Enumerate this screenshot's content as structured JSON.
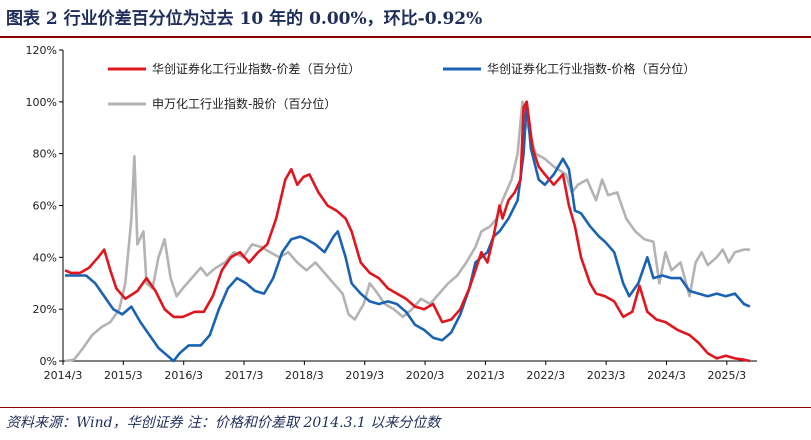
{
  "figure": {
    "title": "图表 2   行业价差百分位为过去 10 年的 0.00%，环比-0.92%",
    "source": "资料来源：Wind，华创证券    注：价格和价差取 2014.3.1 以来分位数"
  },
  "colors": {
    "spread": "#e0161e",
    "price": "#1a63b3",
    "stock": "#b3b3b3",
    "rule": "#8b0000",
    "title": "#1f2d5a"
  },
  "chart_data": {
    "type": "line",
    "xlabel": "",
    "ylabel": "",
    "ylim": [
      0,
      120
    ],
    "xlim": [
      2014.167,
      2025.667
    ],
    "y_ticks": [
      "0%",
      "20%",
      "40%",
      "60%",
      "80%",
      "100%",
      "120%"
    ],
    "y_tick_values": [
      0,
      20,
      40,
      60,
      80,
      100,
      120
    ],
    "x_ticks": [
      "2014/3",
      "2015/3",
      "2016/3",
      "2017/3",
      "2018/3",
      "2019/3",
      "2020/3",
      "2021/3",
      "2022/3",
      "2023/3",
      "2024/3",
      "2025/3"
    ],
    "x_tick_values": [
      2014.167,
      2015.167,
      2016.167,
      2017.167,
      2018.167,
      2019.167,
      2020.167,
      2021.167,
      2022.167,
      2023.167,
      2024.167,
      2025.167
    ],
    "grid": false,
    "legend": "top",
    "series": [
      {
        "name": "华创证券化工行业指数-价差（百分位）",
        "color": "#e0161e",
        "points": [
          [
            2014.2,
            35
          ],
          [
            2014.3,
            34
          ],
          [
            2014.45,
            34
          ],
          [
            2014.6,
            36
          ],
          [
            2014.75,
            40
          ],
          [
            2014.85,
            43
          ],
          [
            2014.95,
            35
          ],
          [
            2015.05,
            28
          ],
          [
            2015.2,
            24
          ],
          [
            2015.4,
            27
          ],
          [
            2015.55,
            32
          ],
          [
            2015.7,
            27
          ],
          [
            2015.85,
            20
          ],
          [
            2016.0,
            17
          ],
          [
            2016.15,
            17
          ],
          [
            2016.35,
            19
          ],
          [
            2016.5,
            19
          ],
          [
            2016.65,
            25
          ],
          [
            2016.8,
            35
          ],
          [
            2016.95,
            40
          ],
          [
            2017.1,
            42
          ],
          [
            2017.25,
            38
          ],
          [
            2017.4,
            42
          ],
          [
            2017.55,
            45
          ],
          [
            2017.7,
            55
          ],
          [
            2017.85,
            70
          ],
          [
            2017.95,
            74
          ],
          [
            2018.05,
            68
          ],
          [
            2018.15,
            71
          ],
          [
            2018.25,
            72
          ],
          [
            2018.4,
            65
          ],
          [
            2018.55,
            60
          ],
          [
            2018.7,
            58
          ],
          [
            2018.85,
            55
          ],
          [
            2018.95,
            50
          ],
          [
            2019.1,
            38
          ],
          [
            2019.25,
            34
          ],
          [
            2019.4,
            32
          ],
          [
            2019.55,
            28
          ],
          [
            2019.7,
            26
          ],
          [
            2019.85,
            24
          ],
          [
            2020.0,
            21
          ],
          [
            2020.15,
            20
          ],
          [
            2020.3,
            22
          ],
          [
            2020.45,
            15
          ],
          [
            2020.6,
            16
          ],
          [
            2020.75,
            20
          ],
          [
            2020.9,
            28
          ],
          [
            2021.0,
            35
          ],
          [
            2021.1,
            42
          ],
          [
            2021.2,
            38
          ],
          [
            2021.3,
            48
          ],
          [
            2021.4,
            60
          ],
          [
            2021.45,
            55
          ],
          [
            2021.55,
            62
          ],
          [
            2021.65,
            65
          ],
          [
            2021.75,
            70
          ],
          [
            2021.8,
            98
          ],
          [
            2021.85,
            100
          ],
          [
            2021.95,
            82
          ],
          [
            2022.05,
            75
          ],
          [
            2022.15,
            72
          ],
          [
            2022.3,
            68
          ],
          [
            2022.45,
            72
          ],
          [
            2022.55,
            60
          ],
          [
            2022.65,
            52
          ],
          [
            2022.75,
            40
          ],
          [
            2022.9,
            30
          ],
          [
            2023.0,
            26
          ],
          [
            2023.15,
            25
          ],
          [
            2023.3,
            23
          ],
          [
            2023.45,
            17
          ],
          [
            2023.6,
            19
          ],
          [
            2023.72,
            29
          ],
          [
            2023.85,
            19
          ],
          [
            2024.0,
            16
          ],
          [
            2024.15,
            15
          ],
          [
            2024.35,
            12
          ],
          [
            2024.55,
            10
          ],
          [
            2024.7,
            7
          ],
          [
            2024.85,
            3
          ],
          [
            2025.0,
            1
          ],
          [
            2025.15,
            2
          ],
          [
            2025.3,
            1
          ],
          [
            2025.45,
            0.5
          ],
          [
            2025.55,
            0
          ]
        ]
      },
      {
        "name": "华创证券化工行业指数-价格（百分位）",
        "color": "#1a63b3",
        "points": [
          [
            2014.2,
            33
          ],
          [
            2014.4,
            33
          ],
          [
            2014.55,
            33
          ],
          [
            2014.7,
            30
          ],
          [
            2014.85,
            25
          ],
          [
            2015.0,
            20
          ],
          [
            2015.15,
            18
          ],
          [
            2015.3,
            21
          ],
          [
            2015.45,
            15
          ],
          [
            2015.6,
            10
          ],
          [
            2015.75,
            5
          ],
          [
            2015.9,
            2
          ],
          [
            2016.0,
            0
          ],
          [
            2016.1,
            3
          ],
          [
            2016.25,
            6
          ],
          [
            2016.45,
            6
          ],
          [
            2016.6,
            10
          ],
          [
            2016.75,
            20
          ],
          [
            2016.9,
            28
          ],
          [
            2017.05,
            32
          ],
          [
            2017.2,
            30
          ],
          [
            2017.35,
            27
          ],
          [
            2017.5,
            26
          ],
          [
            2017.65,
            32
          ],
          [
            2017.8,
            42
          ],
          [
            2017.95,
            47
          ],
          [
            2018.1,
            48
          ],
          [
            2018.2,
            47
          ],
          [
            2018.35,
            45
          ],
          [
            2018.5,
            42
          ],
          [
            2018.65,
            48
          ],
          [
            2018.72,
            50
          ],
          [
            2018.85,
            40
          ],
          [
            2018.95,
            30
          ],
          [
            2019.1,
            26
          ],
          [
            2019.25,
            23
          ],
          [
            2019.4,
            22
          ],
          [
            2019.55,
            23
          ],
          [
            2019.7,
            22
          ],
          [
            2019.85,
            19
          ],
          [
            2020.0,
            14
          ],
          [
            2020.15,
            12
          ],
          [
            2020.3,
            9
          ],
          [
            2020.45,
            8
          ],
          [
            2020.6,
            11
          ],
          [
            2020.75,
            18
          ],
          [
            2020.9,
            28
          ],
          [
            2021.0,
            38
          ],
          [
            2021.1,
            40
          ],
          [
            2021.2,
            42
          ],
          [
            2021.3,
            48
          ],
          [
            2021.4,
            50
          ],
          [
            2021.55,
            55
          ],
          [
            2021.7,
            62
          ],
          [
            2021.8,
            80
          ],
          [
            2021.85,
            100
          ],
          [
            2021.92,
            82
          ],
          [
            2022.05,
            70
          ],
          [
            2022.15,
            68
          ],
          [
            2022.3,
            72
          ],
          [
            2022.45,
            78
          ],
          [
            2022.55,
            74
          ],
          [
            2022.65,
            58
          ],
          [
            2022.75,
            57
          ],
          [
            2022.9,
            52
          ],
          [
            2023.05,
            48
          ],
          [
            2023.15,
            46
          ],
          [
            2023.3,
            42
          ],
          [
            2023.45,
            30
          ],
          [
            2023.55,
            25
          ],
          [
            2023.7,
            30
          ],
          [
            2023.85,
            40
          ],
          [
            2023.95,
            32
          ],
          [
            2024.1,
            33
          ],
          [
            2024.25,
            32
          ],
          [
            2024.4,
            32
          ],
          [
            2024.55,
            27
          ],
          [
            2024.7,
            26
          ],
          [
            2024.85,
            25
          ],
          [
            2025.0,
            26
          ],
          [
            2025.15,
            25
          ],
          [
            2025.3,
            26
          ],
          [
            2025.45,
            22
          ],
          [
            2025.55,
            21
          ]
        ]
      },
      {
        "name": "申万化工行业指数-股价（百分位）",
        "color": "#b3b3b3",
        "points": [
          [
            2014.2,
            0
          ],
          [
            2014.35,
            0.5
          ],
          [
            2014.5,
            5
          ],
          [
            2014.65,
            10
          ],
          [
            2014.8,
            13
          ],
          [
            2014.95,
            15
          ],
          [
            2015.1,
            20
          ],
          [
            2015.2,
            30
          ],
          [
            2015.3,
            55
          ],
          [
            2015.35,
            79
          ],
          [
            2015.4,
            45
          ],
          [
            2015.5,
            50
          ],
          [
            2015.55,
            30
          ],
          [
            2015.65,
            28
          ],
          [
            2015.75,
            40
          ],
          [
            2015.85,
            47
          ],
          [
            2015.95,
            32
          ],
          [
            2016.05,
            25
          ],
          [
            2016.15,
            28
          ],
          [
            2016.3,
            32
          ],
          [
            2016.45,
            36
          ],
          [
            2016.55,
            33
          ],
          [
            2016.7,
            36
          ],
          [
            2016.85,
            38
          ],
          [
            2017.0,
            42
          ],
          [
            2017.15,
            40
          ],
          [
            2017.3,
            45
          ],
          [
            2017.45,
            44
          ],
          [
            2017.6,
            42
          ],
          [
            2017.75,
            40
          ],
          [
            2017.9,
            42
          ],
          [
            2018.05,
            38
          ],
          [
            2018.2,
            35
          ],
          [
            2018.35,
            38
          ],
          [
            2018.5,
            34
          ],
          [
            2018.65,
            30
          ],
          [
            2018.8,
            26
          ],
          [
            2018.9,
            18
          ],
          [
            2019.0,
            16
          ],
          [
            2019.15,
            22
          ],
          [
            2019.25,
            30
          ],
          [
            2019.35,
            27
          ],
          [
            2019.5,
            22
          ],
          [
            2019.65,
            20
          ],
          [
            2019.8,
            17
          ],
          [
            2019.95,
            20
          ],
          [
            2020.1,
            24
          ],
          [
            2020.25,
            22
          ],
          [
            2020.4,
            26
          ],
          [
            2020.55,
            30
          ],
          [
            2020.7,
            33
          ],
          [
            2020.85,
            38
          ],
          [
            2021.0,
            44
          ],
          [
            2021.1,
            50
          ],
          [
            2021.25,
            52
          ],
          [
            2021.35,
            55
          ],
          [
            2021.45,
            62
          ],
          [
            2021.6,
            70
          ],
          [
            2021.7,
            80
          ],
          [
            2021.78,
            100
          ],
          [
            2021.85,
            92
          ],
          [
            2022.0,
            80
          ],
          [
            2022.15,
            78
          ],
          [
            2022.3,
            75
          ],
          [
            2022.5,
            72
          ],
          [
            2022.6,
            65
          ],
          [
            2022.7,
            68
          ],
          [
            2022.85,
            70
          ],
          [
            2023.0,
            62
          ],
          [
            2023.1,
            70
          ],
          [
            2023.2,
            64
          ],
          [
            2023.35,
            65
          ],
          [
            2023.5,
            55
          ],
          [
            2023.65,
            50
          ],
          [
            2023.8,
            47
          ],
          [
            2023.95,
            46
          ],
          [
            2024.05,
            30
          ],
          [
            2024.15,
            42
          ],
          [
            2024.25,
            35
          ],
          [
            2024.4,
            38
          ],
          [
            2024.55,
            25
          ],
          [
            2024.65,
            38
          ],
          [
            2024.75,
            42
          ],
          [
            2024.85,
            37
          ],
          [
            2025.0,
            40
          ],
          [
            2025.1,
            43
          ],
          [
            2025.2,
            38
          ],
          [
            2025.3,
            42
          ],
          [
            2025.45,
            43
          ],
          [
            2025.55,
            43
          ]
        ]
      }
    ]
  }
}
